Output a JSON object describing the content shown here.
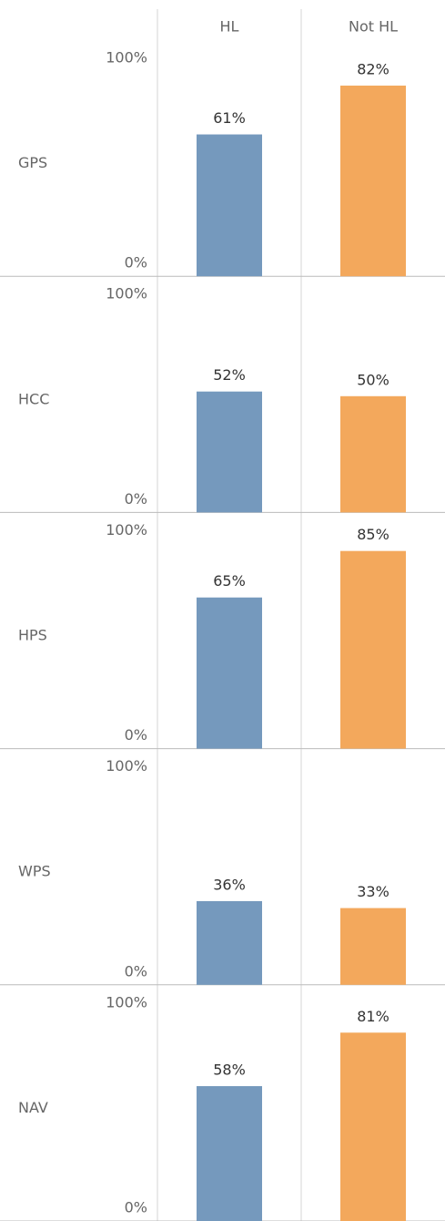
{
  "chart_data": {
    "type": "bar",
    "categories": [
      "HL",
      "Not HL"
    ],
    "colors": [
      "#7599bd",
      "#f3a85c"
    ],
    "ylim": [
      0,
      100
    ],
    "yticks": [
      {
        "value": 0,
        "label": "0%"
      },
      {
        "value": 100,
        "label": "100%"
      }
    ],
    "rows": [
      {
        "name": "GPS",
        "values": [
          61,
          82
        ],
        "value_labels": [
          "61%",
          "82%"
        ]
      },
      {
        "name": "HCC",
        "values": [
          52,
          50
        ],
        "value_labels": [
          "52%",
          "50%"
        ]
      },
      {
        "name": "HPS",
        "values": [
          65,
          85
        ],
        "value_labels": [
          "65%",
          "85%"
        ]
      },
      {
        "name": "WPS",
        "values": [
          36,
          33
        ],
        "value_labels": [
          "36%",
          "33%"
        ]
      },
      {
        "name": "NAV",
        "values": [
          58,
          81
        ],
        "value_labels": [
          "58%",
          "81%"
        ]
      }
    ]
  }
}
